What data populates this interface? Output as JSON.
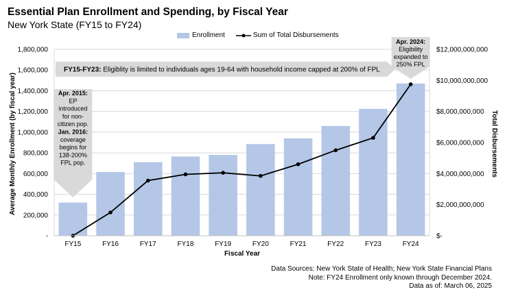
{
  "header": {
    "title": "Essential Plan Enrollment and Spending, by Fiscal Year",
    "subtitle": "New York State (FY15 to FY24)"
  },
  "legend": {
    "enrollment_label": "Enrollment",
    "disbursements_label": "Sum of Total Disbursements"
  },
  "chart_data": {
    "type": "bar",
    "categories": [
      "FY15",
      "FY16",
      "FY17",
      "FY18",
      "FY19",
      "FY20",
      "FY21",
      "FY22",
      "FY23",
      "FY24"
    ],
    "series": [
      {
        "name": "Enrollment",
        "type": "bar",
        "axis": "left",
        "values": [
          320000,
          615000,
          710000,
          765000,
          780000,
          885000,
          940000,
          1060000,
          1225000,
          1470000
        ]
      },
      {
        "name": "Sum of Total Disbursements",
        "type": "line",
        "axis": "right",
        "values": [
          0,
          1500000000,
          3550000000,
          3950000000,
          4050000000,
          3850000000,
          4600000000,
          5500000000,
          6300000000,
          9750000000
        ]
      }
    ],
    "xlabel": "Fiscal Year",
    "ylabel": "Average Monthly Enrollment (by fiscal year)",
    "y2label": "Total Disbursements",
    "ylim": [
      0,
      1800000
    ],
    "y2lim": [
      0,
      12000000000
    ],
    "yticks": [
      {
        "value": 0,
        "label": "-"
      },
      {
        "value": 200000,
        "label": "200,000"
      },
      {
        "value": 400000,
        "label": "400,000"
      },
      {
        "value": 600000,
        "label": "600,000"
      },
      {
        "value": 800000,
        "label": "800,000"
      },
      {
        "value": 1000000,
        "label": "1,000,000"
      },
      {
        "value": 1200000,
        "label": "1,200,000"
      },
      {
        "value": 1400000,
        "label": "1,400,000"
      },
      {
        "value": 1600000,
        "label": "1,600,000"
      },
      {
        "value": 1800000,
        "label": "1,800,000"
      }
    ],
    "y2ticks": [
      {
        "value": 0,
        "label": "$-"
      },
      {
        "value": 2000000000,
        "label": "$2,000,000,000"
      },
      {
        "value": 4000000000,
        "label": "$4,000,000,000"
      },
      {
        "value": 6000000000,
        "label": "$6,000,000,000"
      },
      {
        "value": 8000000000,
        "label": "$8,000,000,000"
      },
      {
        "value": 10000000000,
        "label": "$10,000,000,000"
      },
      {
        "value": 12000000000,
        "label": "$12,000,000,000"
      }
    ],
    "colors": {
      "bar": "#b4c7e7",
      "line": "#000000",
      "annotation": "#d9d9d9",
      "grid": "#d9d9d9"
    },
    "annotations": {
      "banner_bold": "FY15-FY23:",
      "banner_text": " Eligiblity is limited to individuals ages 19-64 with household income capped at 200% of FPL",
      "fy15_note": [
        {
          "text": "Apr. 2015:",
          "bold": true
        },
        {
          "text": "EP",
          "bold": false
        },
        {
          "text": "introduced",
          "bold": false
        },
        {
          "text": "for non-",
          "bold": false
        },
        {
          "text": "citizen pop.",
          "bold": false
        },
        {
          "text": "Jan. 2016:",
          "bold": true
        },
        {
          "text": "coverage",
          "bold": false
        },
        {
          "text": "begins for",
          "bold": false
        },
        {
          "text": "138-200%",
          "bold": false
        },
        {
          "text": "FPL pop.",
          "bold": false
        }
      ],
      "fy24_note": [
        {
          "text": "Apr. 2024:",
          "bold": true
        },
        {
          "text": "Eligibility",
          "bold": false
        },
        {
          "text": "expanded to",
          "bold": false
        },
        {
          "text": "250% FPL",
          "bold": false
        }
      ]
    }
  },
  "footer": {
    "sources": "Data Sources: New York State of Health; New York State Financial Plans",
    "note": "Note: FY24 Enrollment only known through December 2024.",
    "as_of": "Data as of: March 06, 2025"
  }
}
